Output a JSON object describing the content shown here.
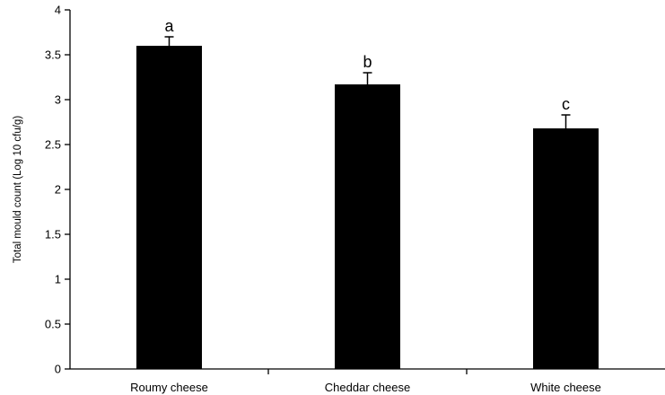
{
  "chart_data": {
    "type": "bar",
    "title": "",
    "xlabel": "",
    "ylabel": "Total mould count (Log 10 cfu/g)",
    "categories": [
      "Roumy cheese",
      "Cheddar cheese",
      "White cheese"
    ],
    "values": [
      3.6,
      3.17,
      2.68
    ],
    "error": [
      0.1,
      0.13,
      0.15
    ],
    "significance_labels": [
      "a",
      "b",
      "c"
    ],
    "ylim": [
      0,
      4
    ],
    "yticks": [
      0,
      0.5,
      1,
      1.5,
      2,
      2.5,
      3,
      3.5,
      4
    ],
    "ytick_labels": [
      "0",
      "0.5",
      "1",
      "1.5",
      "2",
      "2.5",
      "3",
      "3.5",
      "4"
    ],
    "grid": false,
    "legend": "none",
    "bar_color": "#000000"
  }
}
